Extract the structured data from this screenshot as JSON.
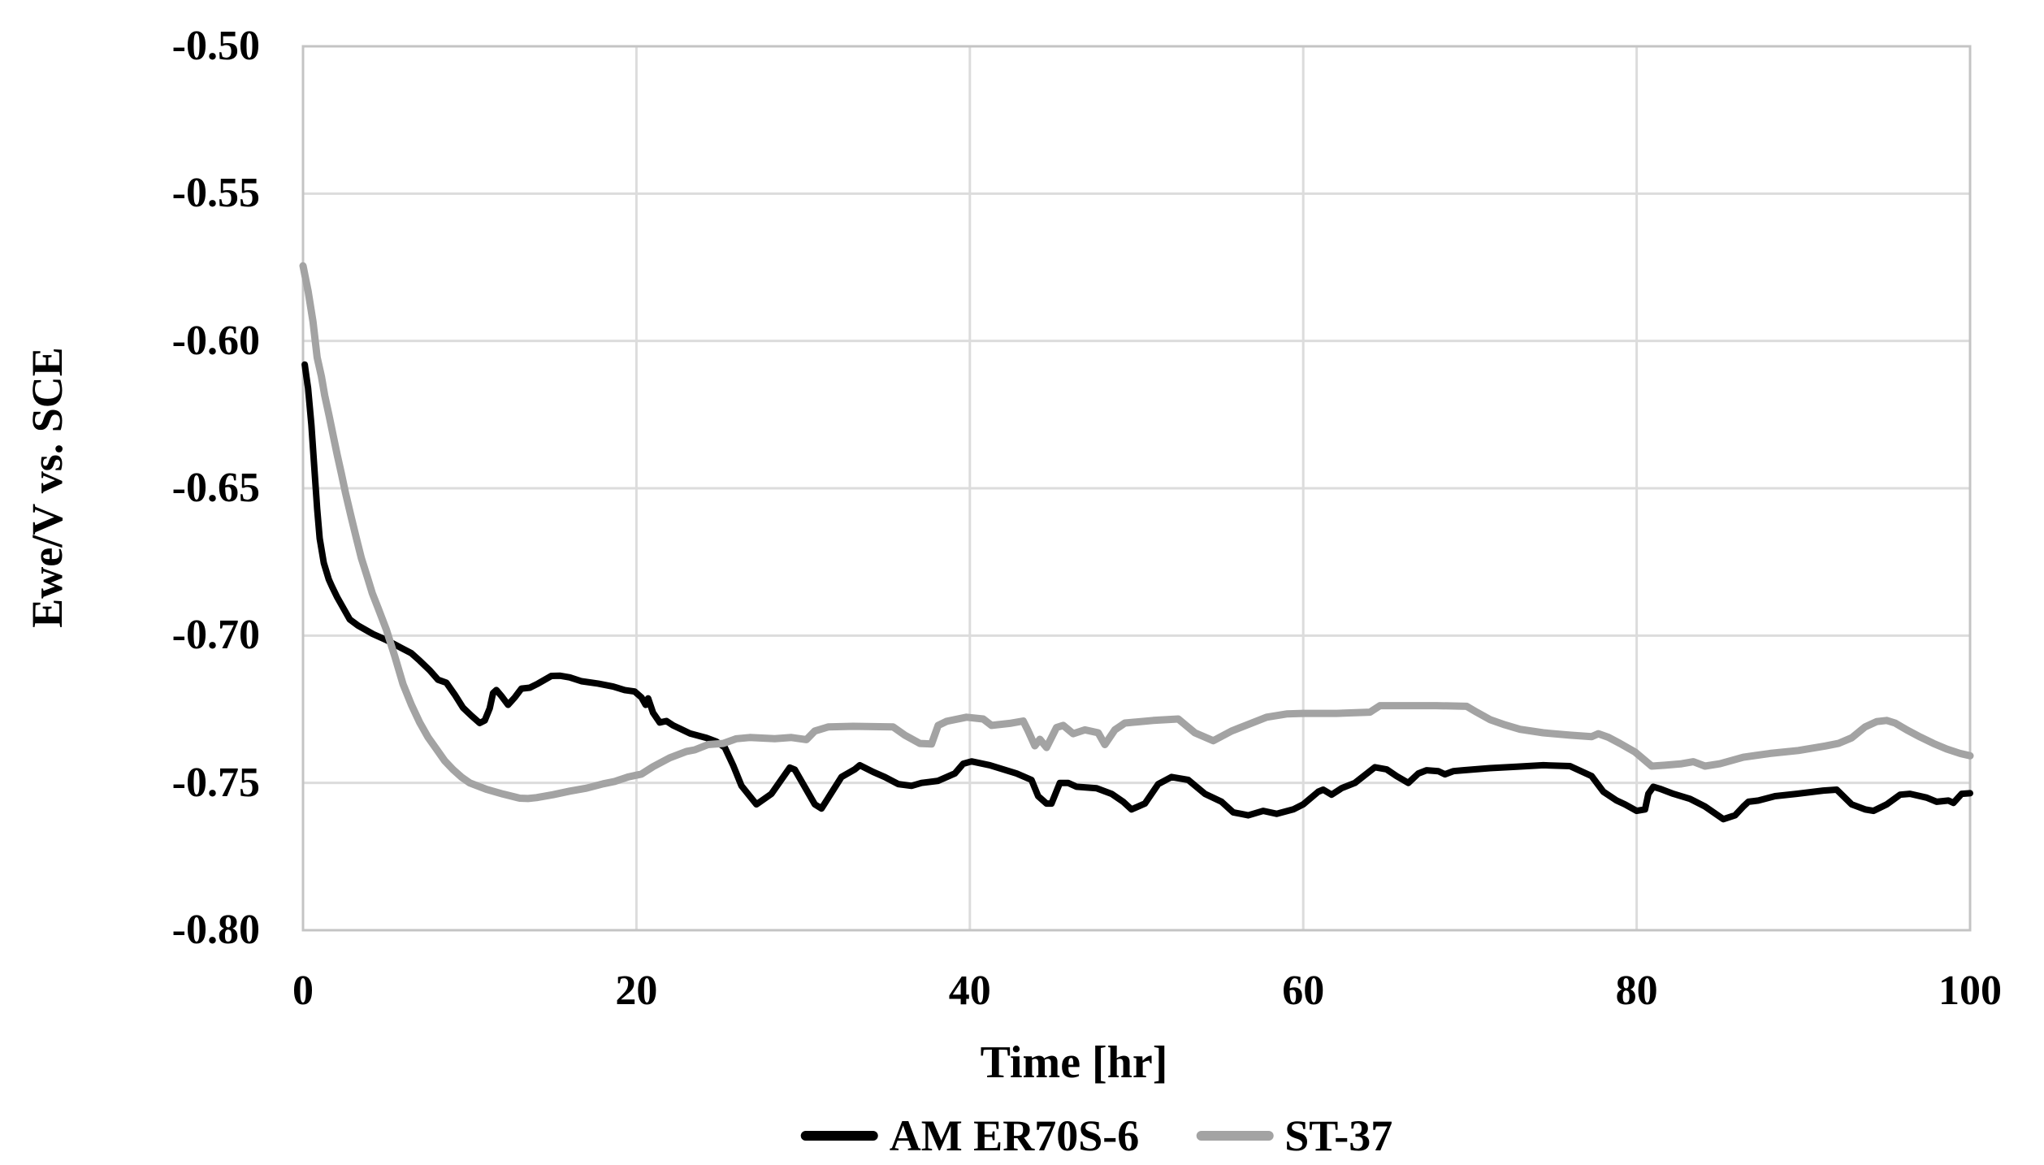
{
  "chart_data": {
    "type": "line",
    "title": "",
    "xlabel": "Time [hr]",
    "ylabel": "Ewe/V vs. SCE",
    "xlim": [
      0,
      100
    ],
    "ylim": [
      -0.8,
      -0.5
    ],
    "x_tick_labels": [
      "0",
      "20",
      "40",
      "60",
      "80",
      "100"
    ],
    "x_tick_values": [
      0,
      20,
      40,
      60,
      80,
      100
    ],
    "y_tick_labels": [
      "-0.50",
      "-0.55",
      "-0.60",
      "-0.65",
      "-0.70",
      "-0.75",
      "-0.80"
    ],
    "y_tick_values": [
      -0.5,
      -0.55,
      -0.6,
      -0.65,
      -0.7,
      -0.75,
      -0.8
    ],
    "grid": true,
    "legend_position": "bottom",
    "colors": {
      "series1": "#000000",
      "series2": "#a3a3a3",
      "gridline": "#dcdcdc",
      "plot_border": "#c4c4c4",
      "background": "#ffffff",
      "text": "#000000"
    },
    "series": [
      {
        "name": "AM ER70S-6",
        "color": "#000000",
        "stroke_width": 8,
        "points": [
          [
            0.1,
            -0.608
          ],
          [
            0.2,
            -0.612
          ],
          [
            0.3,
            -0.616
          ],
          [
            0.5,
            -0.6285
          ],
          [
            0.7,
            -0.645
          ],
          [
            0.85,
            -0.657
          ],
          [
            1.0,
            -0.667
          ],
          [
            1.25,
            -0.6754
          ],
          [
            1.55,
            -0.681
          ],
          [
            1.75,
            -0.6835
          ],
          [
            2.05,
            -0.687
          ],
          [
            2.45,
            -0.691
          ],
          [
            2.8,
            -0.6945
          ],
          [
            3.3,
            -0.6966
          ],
          [
            4.2,
            -0.6995
          ],
          [
            5.0,
            -0.7015
          ],
          [
            6.0,
            -0.7045
          ],
          [
            6.5,
            -0.706
          ],
          [
            7.0,
            -0.7085
          ],
          [
            7.6,
            -0.7118
          ],
          [
            8.1,
            -0.715
          ],
          [
            8.6,
            -0.716
          ],
          [
            9.1,
            -0.72
          ],
          [
            9.6,
            -0.7245
          ],
          [
            10.1,
            -0.7272
          ],
          [
            10.6,
            -0.7297
          ],
          [
            10.9,
            -0.7288
          ],
          [
            11.2,
            -0.7247
          ],
          [
            11.4,
            -0.7195
          ],
          [
            11.6,
            -0.7185
          ],
          [
            11.9,
            -0.7205
          ],
          [
            12.3,
            -0.7235
          ],
          [
            12.7,
            -0.721
          ],
          [
            13.1,
            -0.718
          ],
          [
            13.6,
            -0.7177
          ],
          [
            14.1,
            -0.7163
          ],
          [
            14.9,
            -0.7137
          ],
          [
            15.4,
            -0.7136
          ],
          [
            16.0,
            -0.7142
          ],
          [
            16.7,
            -0.7155
          ],
          [
            17.7,
            -0.7163
          ],
          [
            18.6,
            -0.7173
          ],
          [
            19.3,
            -0.7185
          ],
          [
            19.9,
            -0.719
          ],
          [
            20.3,
            -0.721
          ],
          [
            20.55,
            -0.7235
          ],
          [
            20.7,
            -0.7213
          ],
          [
            21.0,
            -0.7262
          ],
          [
            21.4,
            -0.7295
          ],
          [
            21.8,
            -0.729
          ],
          [
            22.2,
            -0.7305
          ],
          [
            22.7,
            -0.7318
          ],
          [
            23.2,
            -0.7332
          ],
          [
            24.2,
            -0.7347
          ],
          [
            24.8,
            -0.736
          ],
          [
            25.3,
            -0.738
          ],
          [
            25.8,
            -0.744
          ],
          [
            26.3,
            -0.751
          ],
          [
            27.2,
            -0.7573
          ],
          [
            28.1,
            -0.7537
          ],
          [
            29.2,
            -0.7448
          ],
          [
            29.5,
            -0.7455
          ],
          [
            30.7,
            -0.7573
          ],
          [
            31.1,
            -0.7587
          ],
          [
            32.3,
            -0.748
          ],
          [
            33.1,
            -0.7454
          ],
          [
            33.4,
            -0.744
          ],
          [
            34.2,
            -0.7463
          ],
          [
            34.9,
            -0.748
          ],
          [
            35.7,
            -0.7504
          ],
          [
            36.5,
            -0.751
          ],
          [
            37.1,
            -0.75
          ],
          [
            38.1,
            -0.7493
          ],
          [
            39.1,
            -0.7468
          ],
          [
            39.6,
            -0.7435
          ],
          [
            40.1,
            -0.7427
          ],
          [
            41.2,
            -0.744
          ],
          [
            42.8,
            -0.7468
          ],
          [
            43.7,
            -0.749
          ],
          [
            44.1,
            -0.7545
          ],
          [
            44.6,
            -0.757
          ],
          [
            44.9,
            -0.757
          ],
          [
            45.4,
            -0.75
          ],
          [
            45.9,
            -0.75
          ],
          [
            46.4,
            -0.7513
          ],
          [
            47.6,
            -0.7518
          ],
          [
            48.5,
            -0.7537
          ],
          [
            49.2,
            -0.7564
          ],
          [
            49.7,
            -0.759
          ],
          [
            50.5,
            -0.757
          ],
          [
            51.3,
            -0.7504
          ],
          [
            52.1,
            -0.748
          ],
          [
            53.1,
            -0.749
          ],
          [
            54.1,
            -0.7537
          ],
          [
            55.1,
            -0.7564
          ],
          [
            55.8,
            -0.76
          ],
          [
            56.7,
            -0.761
          ],
          [
            57.6,
            -0.7595
          ],
          [
            58.4,
            -0.7605
          ],
          [
            59.4,
            -0.759
          ],
          [
            60.0,
            -0.7573
          ],
          [
            60.9,
            -0.753
          ],
          [
            61.2,
            -0.7523
          ],
          [
            61.7,
            -0.754
          ],
          [
            62.3,
            -0.7518
          ],
          [
            63.1,
            -0.75
          ],
          [
            64.3,
            -0.7447
          ],
          [
            65.0,
            -0.7454
          ],
          [
            65.6,
            -0.7477
          ],
          [
            66.3,
            -0.75
          ],
          [
            66.9,
            -0.7468
          ],
          [
            67.4,
            -0.7457
          ],
          [
            68.1,
            -0.746
          ],
          [
            68.5,
            -0.7471
          ],
          [
            69.0,
            -0.746
          ],
          [
            69.6,
            -0.7457
          ],
          [
            71.2,
            -0.745
          ],
          [
            72.8,
            -0.7445
          ],
          [
            74.4,
            -0.744
          ],
          [
            76.0,
            -0.7443
          ],
          [
            77.3,
            -0.7477
          ],
          [
            78.0,
            -0.753
          ],
          [
            78.8,
            -0.756
          ],
          [
            79.3,
            -0.7573
          ],
          [
            80.0,
            -0.7595
          ],
          [
            80.5,
            -0.759
          ],
          [
            80.7,
            -0.7537
          ],
          [
            81.0,
            -0.7513
          ],
          [
            81.4,
            -0.752
          ],
          [
            82.2,
            -0.7537
          ],
          [
            83.2,
            -0.7554
          ],
          [
            84.1,
            -0.758
          ],
          [
            85.2,
            -0.7623
          ],
          [
            85.9,
            -0.761
          ],
          [
            86.4,
            -0.758
          ],
          [
            86.7,
            -0.7564
          ],
          [
            87.3,
            -0.756
          ],
          [
            88.3,
            -0.7545
          ],
          [
            89.6,
            -0.7537
          ],
          [
            91.2,
            -0.7526
          ],
          [
            92.0,
            -0.7523
          ],
          [
            92.9,
            -0.7573
          ],
          [
            93.7,
            -0.759
          ],
          [
            94.2,
            -0.7595
          ],
          [
            95.0,
            -0.7573
          ],
          [
            95.8,
            -0.754
          ],
          [
            96.4,
            -0.7537
          ],
          [
            97.4,
            -0.755
          ],
          [
            98.0,
            -0.7564
          ],
          [
            98.7,
            -0.756
          ],
          [
            99.0,
            -0.7568
          ],
          [
            99.5,
            -0.7537
          ],
          [
            100,
            -0.7535
          ]
        ]
      },
      {
        "name": "ST-37",
        "color": "#a3a3a3",
        "stroke_width": 9,
        "points": [
          [
            0,
            -0.5745
          ],
          [
            0.3,
            -0.583
          ],
          [
            0.6,
            -0.5935
          ],
          [
            0.85,
            -0.6056
          ],
          [
            1.1,
            -0.612
          ],
          [
            1.3,
            -0.6185
          ],
          [
            1.55,
            -0.625
          ],
          [
            1.8,
            -0.6318
          ],
          [
            2.05,
            -0.6387
          ],
          [
            2.3,
            -0.645
          ],
          [
            2.55,
            -0.6516
          ],
          [
            2.9,
            -0.66
          ],
          [
            3.2,
            -0.667
          ],
          [
            3.5,
            -0.6737
          ],
          [
            3.85,
            -0.68
          ],
          [
            4.15,
            -0.6856
          ],
          [
            4.5,
            -0.6906
          ],
          [
            5.0,
            -0.698
          ],
          [
            5.5,
            -0.707
          ],
          [
            6.0,
            -0.7165
          ],
          [
            6.5,
            -0.7235
          ],
          [
            7.0,
            -0.7295
          ],
          [
            7.5,
            -0.7345
          ],
          [
            8.0,
            -0.7385
          ],
          [
            8.5,
            -0.7425
          ],
          [
            9.0,
            -0.7455
          ],
          [
            9.5,
            -0.748
          ],
          [
            10.0,
            -0.75
          ],
          [
            11.0,
            -0.7522
          ],
          [
            12.0,
            -0.7538
          ],
          [
            13.0,
            -0.7552
          ],
          [
            13.5,
            -0.7553
          ],
          [
            14.0,
            -0.755
          ],
          [
            15.0,
            -0.754
          ],
          [
            16.0,
            -0.7528
          ],
          [
            17.0,
            -0.7518
          ],
          [
            18.0,
            -0.7503
          ],
          [
            18.7,
            -0.7495
          ],
          [
            19.5,
            -0.748
          ],
          [
            20.3,
            -0.747
          ],
          [
            21.0,
            -0.7445
          ],
          [
            22.0,
            -0.7415
          ],
          [
            23.0,
            -0.7393
          ],
          [
            23.5,
            -0.7388
          ],
          [
            24.3,
            -0.737
          ],
          [
            25.2,
            -0.7366
          ],
          [
            26.0,
            -0.735
          ],
          [
            26.8,
            -0.7346
          ],
          [
            27.3,
            -0.7347
          ],
          [
            28.3,
            -0.735
          ],
          [
            29.3,
            -0.7346
          ],
          [
            30.2,
            -0.7353
          ],
          [
            30.7,
            -0.7324
          ],
          [
            31.5,
            -0.731
          ],
          [
            33.0,
            -0.7308
          ],
          [
            35.4,
            -0.731
          ],
          [
            36.1,
            -0.7338
          ],
          [
            37.0,
            -0.7366
          ],
          [
            37.7,
            -0.7368
          ],
          [
            38.1,
            -0.7305
          ],
          [
            38.6,
            -0.7291
          ],
          [
            39.8,
            -0.7277
          ],
          [
            40.8,
            -0.7283
          ],
          [
            41.3,
            -0.7305
          ],
          [
            42.4,
            -0.7298
          ],
          [
            43.2,
            -0.729
          ],
          [
            43.5,
            -0.7324
          ],
          [
            43.9,
            -0.7374
          ],
          [
            44.2,
            -0.7352
          ],
          [
            44.6,
            -0.738
          ],
          [
            45.2,
            -0.7312
          ],
          [
            45.6,
            -0.7305
          ],
          [
            46.2,
            -0.7333
          ],
          [
            46.9,
            -0.732
          ],
          [
            47.7,
            -0.733
          ],
          [
            48.1,
            -0.737
          ],
          [
            48.7,
            -0.732
          ],
          [
            49.3,
            -0.7297
          ],
          [
            51.0,
            -0.7288
          ],
          [
            52.5,
            -0.7283
          ],
          [
            53.5,
            -0.733
          ],
          [
            54.6,
            -0.7357
          ],
          [
            55.7,
            -0.7324
          ],
          [
            57.0,
            -0.7295
          ],
          [
            57.8,
            -0.7277
          ],
          [
            59.0,
            -0.7266
          ],
          [
            60.0,
            -0.7264
          ],
          [
            62.0,
            -0.7264
          ],
          [
            64.0,
            -0.726
          ],
          [
            64.6,
            -0.7238
          ],
          [
            66.0,
            -0.7238
          ],
          [
            68.0,
            -0.7238
          ],
          [
            69.8,
            -0.724
          ],
          [
            70.4,
            -0.726
          ],
          [
            71.2,
            -0.7285
          ],
          [
            72.1,
            -0.7303
          ],
          [
            73.0,
            -0.7318
          ],
          [
            74.4,
            -0.733
          ],
          [
            76.0,
            -0.7338
          ],
          [
            77.3,
            -0.7343
          ],
          [
            77.7,
            -0.7333
          ],
          [
            78.3,
            -0.7345
          ],
          [
            79.0,
            -0.7366
          ],
          [
            79.9,
            -0.7395
          ],
          [
            80.9,
            -0.7443
          ],
          [
            81.7,
            -0.744
          ],
          [
            82.7,
            -0.7435
          ],
          [
            83.4,
            -0.7428
          ],
          [
            84.1,
            -0.7443
          ],
          [
            85.0,
            -0.7435
          ],
          [
            86.4,
            -0.7413
          ],
          [
            88.0,
            -0.74
          ],
          [
            89.7,
            -0.739
          ],
          [
            91.3,
            -0.7375
          ],
          [
            92.1,
            -0.7366
          ],
          [
            92.9,
            -0.7347
          ],
          [
            93.7,
            -0.731
          ],
          [
            94.4,
            -0.7292
          ],
          [
            95.0,
            -0.7288
          ],
          [
            95.5,
            -0.7297
          ],
          [
            96.2,
            -0.732
          ],
          [
            97.0,
            -0.7344
          ],
          [
            97.8,
            -0.7366
          ],
          [
            98.6,
            -0.7385
          ],
          [
            99.4,
            -0.74
          ],
          [
            100,
            -0.7408
          ]
        ]
      }
    ]
  }
}
